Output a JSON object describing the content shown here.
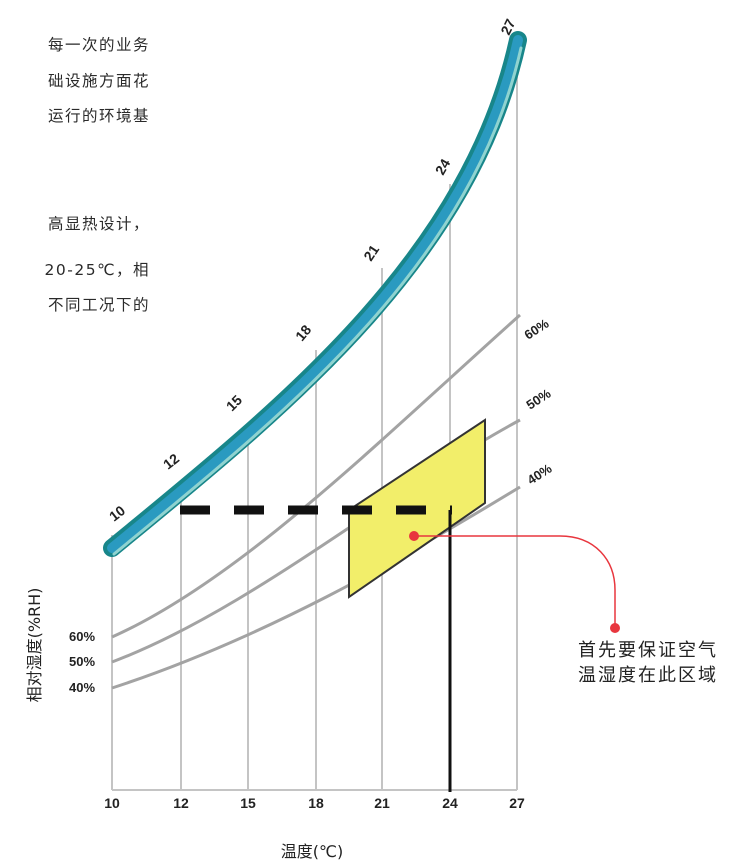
{
  "text_fragments": [
    "每一次的业务",
    "础设施方面花",
    "运行的环境基",
    "高显热设计，",
    "20-25℃，相",
    "不同工况下的"
  ],
  "chart": {
    "x_axis_label": "温度(℃)",
    "y_axis_label": "相对湿度(%RH)",
    "x_ticks": [
      "10",
      "12",
      "15",
      "18",
      "21",
      "24",
      "27"
    ],
    "saturation_ticks": [
      "10",
      "12",
      "15",
      "18",
      "21",
      "24",
      "27"
    ],
    "rh_curve_labels_left": [
      "60%",
      "50%",
      "40%"
    ],
    "rh_curve_labels_right": [
      "60%",
      "50%",
      "40%"
    ],
    "annotation_line1": "首先要保证空气",
    "annotation_line2": "温湿度在此区域",
    "colors": {
      "saturation_outer": "#18868a",
      "saturation_mid": "#2a9ac0",
      "saturation_inner": "#8fd3d0",
      "rh_curve": "#a3a3a3",
      "grid": "#c4c4c4",
      "zone_fill": "#f2ee6a",
      "zone_stroke": "#333333",
      "dashed_line": "#111111",
      "pointer": "#e8363e"
    }
  }
}
